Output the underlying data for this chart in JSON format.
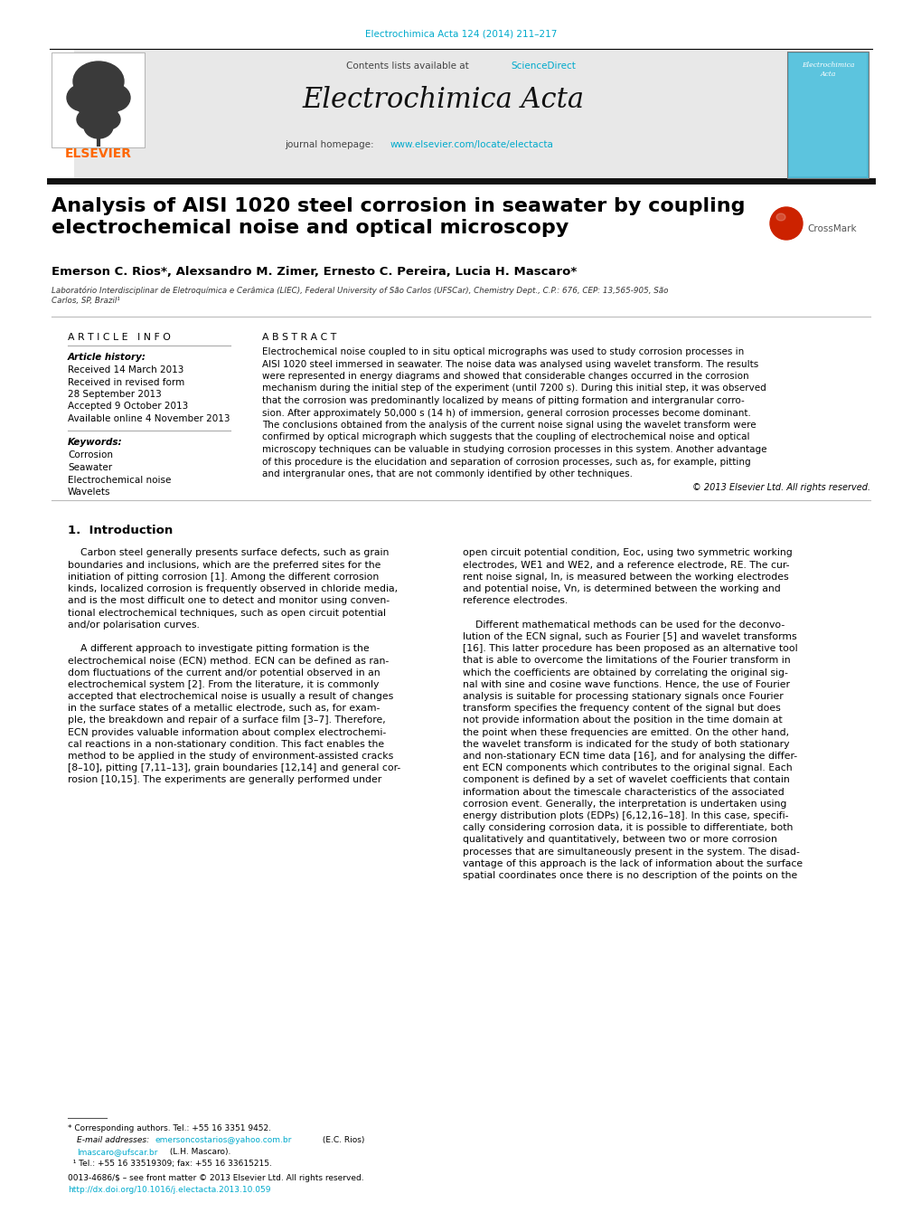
{
  "background_color": "#ffffff",
  "page_width": 10.2,
  "page_height": 13.51,
  "journal_ref_color": "#00aacc",
  "journal_ref": "Electrochimica Acta 124 (2014) 211–217",
  "header_bg": "#e8e8e8",
  "header_journal": "Electrochimica Acta",
  "header_url_color": "#00aacc",
  "elsevier_color": "#ff6600",
  "article_title": "Analysis of AISI 1020 steel corrosion in seawater by coupling\nelectrochemical noise and optical microscopy",
  "authors": "Emerson C. Rios*, Alexsandro M. Zimer, Ernesto C. Pereira, Lucia H. Mascaro*",
  "affiliation": "Laboratório Interdisciplinar de Eletroquímica e Cerâmica (LIEC), Federal University of São Carlos (UFSCar), Chemistry Dept., C.P.: 676, CEP: 13,565-905, São\nCarlos, SP, Brazil¹",
  "article_info_header": "A R T I C L E   I N F O",
  "article_history_label": "Article history:",
  "article_history": [
    "Received 14 March 2013",
    "Received in revised form",
    "28 September 2013",
    "Accepted 9 October 2013",
    "Available online 4 November 2013"
  ],
  "keywords_label": "Keywords:",
  "keywords": [
    "Corrosion",
    "Seawater",
    "Electrochemical noise",
    "Wavelets"
  ],
  "abstract_header": "A B S T R A C T",
  "abstract_lines": [
    "Electrochemical noise coupled to in situ optical micrographs was used to study corrosion processes in",
    "AISI 1020 steel immersed in seawater. The noise data was analysed using wavelet transform. The results",
    "were represented in energy diagrams and showed that considerable changes occurred in the corrosion",
    "mechanism during the initial step of the experiment (until 7200 s). During this initial step, it was observed",
    "that the corrosion was predominantly localized by means of pitting formation and intergranular corro-",
    "sion. After approximately 50,000 s (14 h) of immersion, general corrosion processes become dominant.",
    "The conclusions obtained from the analysis of the current noise signal using the wavelet transform were",
    "confirmed by optical micrograph which suggests that the coupling of electrochemical noise and optical",
    "microscopy techniques can be valuable in studying corrosion processes in this system. Another advantage",
    "of this procedure is the elucidation and separation of corrosion processes, such as, for example, pitting",
    "and intergranular ones, that are not commonly identified by other techniques."
  ],
  "copyright": "© 2013 Elsevier Ltd. All rights reserved.",
  "section1_title": "1.  Introduction",
  "intro_left_lines": [
    "    Carbon steel generally presents surface defects, such as grain",
    "boundaries and inclusions, which are the preferred sites for the",
    "initiation of pitting corrosion [1]. Among the different corrosion",
    "kinds, localized corrosion is frequently observed in chloride media,",
    "and is the most difficult one to detect and monitor using conven-",
    "tional electrochemical techniques, such as open circuit potential",
    "and/or polarisation curves.",
    "",
    "    A different approach to investigate pitting formation is the",
    "electrochemical noise (ECN) method. ECN can be defined as ran-",
    "dom fluctuations of the current and/or potential observed in an",
    "electrochemical system [2]. From the literature, it is commonly",
    "accepted that electrochemical noise is usually a result of changes",
    "in the surface states of a metallic electrode, such as, for exam-",
    "ple, the breakdown and repair of a surface film [3–7]. Therefore,",
    "ECN provides valuable information about complex electrochemi-",
    "cal reactions in a non-stationary condition. This fact enables the",
    "method to be applied in the study of environment-assisted cracks",
    "[8–10], pitting [7,11–13], grain boundaries [12,14] and general cor-",
    "rosion [10,15]. The experiments are generally performed under"
  ],
  "intro_right_lines": [
    "open circuit potential condition, Eoc, using two symmetric working",
    "electrodes, WE1 and WE2, and a reference electrode, RE. The cur-",
    "rent noise signal, In, is measured between the working electrodes",
    "and potential noise, Vn, is determined between the working and",
    "reference electrodes.",
    "",
    "    Different mathematical methods can be used for the deconvo-",
    "lution of the ECN signal, such as Fourier [5] and wavelet transforms",
    "[16]. This latter procedure has been proposed as an alternative tool",
    "that is able to overcome the limitations of the Fourier transform in",
    "which the coefficients are obtained by correlating the original sig-",
    "nal with sine and cosine wave functions. Hence, the use of Fourier",
    "analysis is suitable for processing stationary signals once Fourier",
    "transform specifies the frequency content of the signal but does",
    "not provide information about the position in the time domain at",
    "the point when these frequencies are emitted. On the other hand,",
    "the wavelet transform is indicated for the study of both stationary",
    "and non-stationary ECN time data [16], and for analysing the differ-",
    "ent ECN components which contributes to the original signal. Each",
    "component is defined by a set of wavelet coefficients that contain",
    "information about the timescale characteristics of the associated",
    "corrosion event. Generally, the interpretation is undertaken using",
    "energy distribution plots (EDPs) [6,12,16–18]. In this case, specifi-",
    "cally considering corrosion data, it is possible to differentiate, both",
    "qualitatively and quantitatively, between two or more corrosion",
    "processes that are simultaneously present in the system. The disad-",
    "vantage of this approach is the lack of information about the surface",
    "spatial coordinates once there is no description of the points on the"
  ],
  "footnote_star": "* Corresponding authors. Tel.: +55 16 3351 9452.",
  "footnote_email_label": "E-mail addresses: ",
  "footnote_email1": "emersoncostarios@yahoo.com.br",
  "footnote_email1_suffix": " (E.C. Rios)",
  "footnote_email2": "lmascaro@ufscar.br",
  "footnote_email2_suffix": " (L.H. Mascaro).",
  "footnote_tel": "  ¹ Tel.: +55 16 33519309; fax: +55 16 33615215.",
  "footer_matter": "0013-4686/$ – see front matter © 2013 Elsevier Ltd. All rights reserved.",
  "footer_doi": "http://dx.doi.org/10.1016/j.electacta.2013.10.059",
  "link_color": "#00aacc"
}
